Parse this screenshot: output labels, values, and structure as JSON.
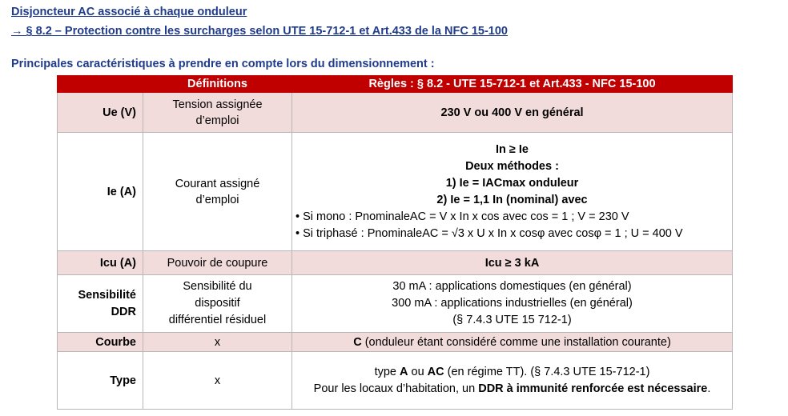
{
  "links": {
    "line1": "Disjoncteur AC associé à chaque onduleur",
    "line2": "→ § 8.2 – Protection contre les surcharges selon UTE 15-712-1 et Art.433 de la NFC 15-100"
  },
  "section_title": "Principales caractéristiques à prendre en compte lors du dimensionnement :",
  "table": {
    "headers": [
      "",
      "Définitions",
      "Règles : § 8.2 - UTE 15-712-1 et Art.433 - NFC 15-100"
    ],
    "rows": {
      "ue": {
        "label": "Ue (V)",
        "definition_l1": "Tension assignée",
        "definition_l2": "d’emploi",
        "rule": "230 V ou 400 V en général"
      },
      "ie": {
        "label": "Ie (A)",
        "definition_l1": "Courant assigné",
        "definition_l2": "d’emploi",
        "rule_l1": "In ≥ Ie",
        "rule_l2": "Deux méthodes :",
        "rule_l3": "1) Ie = IACmax onduleur",
        "rule_l4": "2) Ie = 1,1 In (nominal) avec",
        "rule_l5": "• Si mono : PnominaleAC = V x In x cos avec cos = 1 ; V = 230 V",
        "rule_l6": "• Si triphasé : PnominaleAC = √3 x U x In x cosφ avec cosφ = 1 ; U = 400 V"
      },
      "icu": {
        "label": "Icu (A)",
        "definition": "Pouvoir de coupure",
        "rule": "Icu ≥ 3 kA"
      },
      "ddr": {
        "label_l1": "Sensibilité",
        "label_l2": "DDR",
        "definition_l1": "Sensibilité du",
        "definition_l2": "dispositif",
        "definition_l3": "différentiel résiduel",
        "rule_l1": "30 mA : applications domestiques (en général)",
        "rule_l2": "300 mA : applications industrielles (en général)",
        "rule_l3": "(§ 7.4.3 UTE 15 712-1)"
      },
      "courbe": {
        "label": "Courbe",
        "definition": "x",
        "rule_bold": "C",
        "rule_rest": " (onduleur étant considéré comme une installation courante)"
      },
      "type": {
        "label": "Type",
        "definition": "x",
        "l1_pre": "type ",
        "l1_a": "A",
        "l1_mid": " ou ",
        "l1_ac": "AC",
        "l1_post": " (en régime TT). (§ 7.4.3 UTE 15-712-1)",
        "l2_pre": "Pour les locaux d’habitation, un ",
        "l2_bold": "DDR à immunité renforcée est nécessaire",
        "l2_post": "."
      }
    }
  },
  "colors": {
    "header_bg": "#c00000",
    "pink_row": "#f2dcdb",
    "title_blue": "#1f3b8c"
  }
}
